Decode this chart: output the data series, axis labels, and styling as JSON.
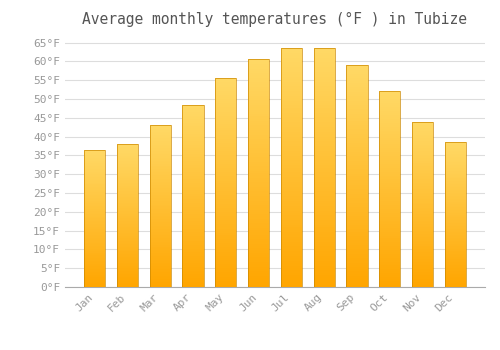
{
  "title": "Average monthly temperatures (°F ) in Tubize",
  "months": [
    "Jan",
    "Feb",
    "Mar",
    "Apr",
    "May",
    "Jun",
    "Jul",
    "Aug",
    "Sep",
    "Oct",
    "Nov",
    "Dec"
  ],
  "values": [
    36.5,
    38,
    43,
    48.5,
    55.5,
    60.5,
    63.5,
    63.5,
    59,
    52,
    44,
    38.5
  ],
  "bar_color_bottom": "#FFA500",
  "bar_color_top": "#FFD966",
  "bar_edge_color": "#CC8800",
  "background_color": "#FFFFFF",
  "plot_bg_color": "#FFFFFF",
  "grid_color": "#DDDDDD",
  "ylim": [
    0,
    67
  ],
  "yticks": [
    0,
    5,
    10,
    15,
    20,
    25,
    30,
    35,
    40,
    45,
    50,
    55,
    60,
    65
  ],
  "title_fontsize": 10.5,
  "tick_fontsize": 8,
  "tick_color": "#999999",
  "title_color": "#555555",
  "bar_width": 0.65
}
